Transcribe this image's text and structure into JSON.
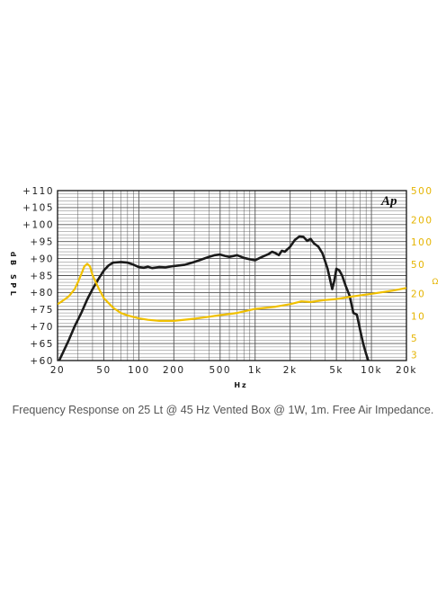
{
  "caption": "Frequency Response on 25 Lt @ 45 Hz Vented Box @ 1W, 1m. Free Air Impedance.",
  "logo_text": "Ap",
  "colors": {
    "spl": "#1a1a1a",
    "impedance": "#f0c000",
    "grid": "#555555",
    "impedance_ticks": "#e5b400"
  },
  "chart_data": {
    "type": "line",
    "xlabel": "Hz",
    "ylabel": "dB SPL",
    "y2label": "Ω",
    "x_scale": "log",
    "xlim": [
      20,
      20000
    ],
    "ylim": [
      60,
      110
    ],
    "y2lim": [
      2.5,
      500
    ],
    "y2_scale": "log",
    "grid": true,
    "x_ticks": [
      20,
      50,
      100,
      200,
      500,
      1000,
      2000,
      5000,
      10000,
      20000
    ],
    "x_tick_labels": [
      "20",
      "50",
      "100",
      "200",
      "500",
      "1k",
      "2k",
      "5k",
      "10k",
      "20k"
    ],
    "y_ticks": [
      60,
      65,
      70,
      75,
      80,
      85,
      90,
      95,
      100,
      105,
      110
    ],
    "y_tick_labels": [
      "+60",
      "+65",
      "+70",
      "+75",
      "+80",
      "+85",
      "+90",
      "+95",
      "+100",
      "+105",
      "+110"
    ],
    "y2_ticks": [
      3,
      5,
      10,
      20,
      50,
      100,
      200,
      500
    ],
    "y2_tick_labels": [
      "3",
      "5",
      "10",
      "20",
      "50",
      "100",
      "200",
      "500"
    ],
    "series": [
      {
        "axis": "left",
        "x": [
          20,
          22,
          25,
          28,
          32,
          36,
          40,
          45,
          50,
          55,
          60,
          70,
          80,
          90,
          100,
          110,
          120,
          130,
          150,
          170,
          200,
          250,
          300,
          350,
          400,
          450,
          500,
          550,
          600,
          700,
          800,
          900,
          1000,
          1100,
          1200,
          1300,
          1400,
          1500,
          1600,
          1700,
          1800,
          2000,
          2200,
          2400,
          2600,
          2800,
          3000,
          3200,
          3500,
          3800,
          4200,
          4600,
          4800,
          5000,
          5300,
          5600,
          6000,
          6500,
          7000,
          7500,
          8000,
          8500,
          9000,
          9500,
          10000
        ],
        "y": [
          59,
          62,
          66,
          70,
          74,
          78,
          81,
          84,
          86.5,
          88,
          88.8,
          89,
          88.8,
          88.2,
          87.5,
          87.3,
          87.6,
          87.2,
          87.5,
          87.4,
          87.8,
          88.2,
          89,
          89.8,
          90.5,
          91,
          91.2,
          90.8,
          90.5,
          91,
          90.2,
          89.8,
          89.5,
          90.2,
          90.8,
          91.3,
          92,
          91.6,
          91,
          92.3,
          92,
          93.5,
          95.5,
          96.5,
          96.4,
          95.2,
          95.8,
          94.5,
          93.5,
          91.5,
          87,
          81,
          83.5,
          87,
          86.5,
          85,
          82,
          79,
          74,
          73.5,
          69,
          65,
          62,
          59.5,
          57
        ]
      },
      {
        "axis": "right",
        "x": [
          20,
          22,
          25,
          28,
          30,
          32,
          34,
          36,
          38,
          40,
          45,
          50,
          60,
          70,
          80,
          100,
          120,
          150,
          200,
          300,
          400,
          500,
          700,
          1000,
          1500,
          2000,
          2500,
          3000,
          4000,
          5000,
          7000,
          10000,
          15000,
          20000
        ],
        "y": [
          14.5,
          16,
          18.5,
          23,
          29,
          37,
          47,
          51,
          47,
          36,
          24,
          17.5,
          13,
          11,
          10.2,
          9.3,
          8.9,
          8.6,
          8.6,
          9.2,
          9.8,
          10.3,
          11,
          12.5,
          13.4,
          14.5,
          15.8,
          15.5,
          16.5,
          17,
          18.5,
          20,
          22,
          24
        ]
      }
    ]
  }
}
